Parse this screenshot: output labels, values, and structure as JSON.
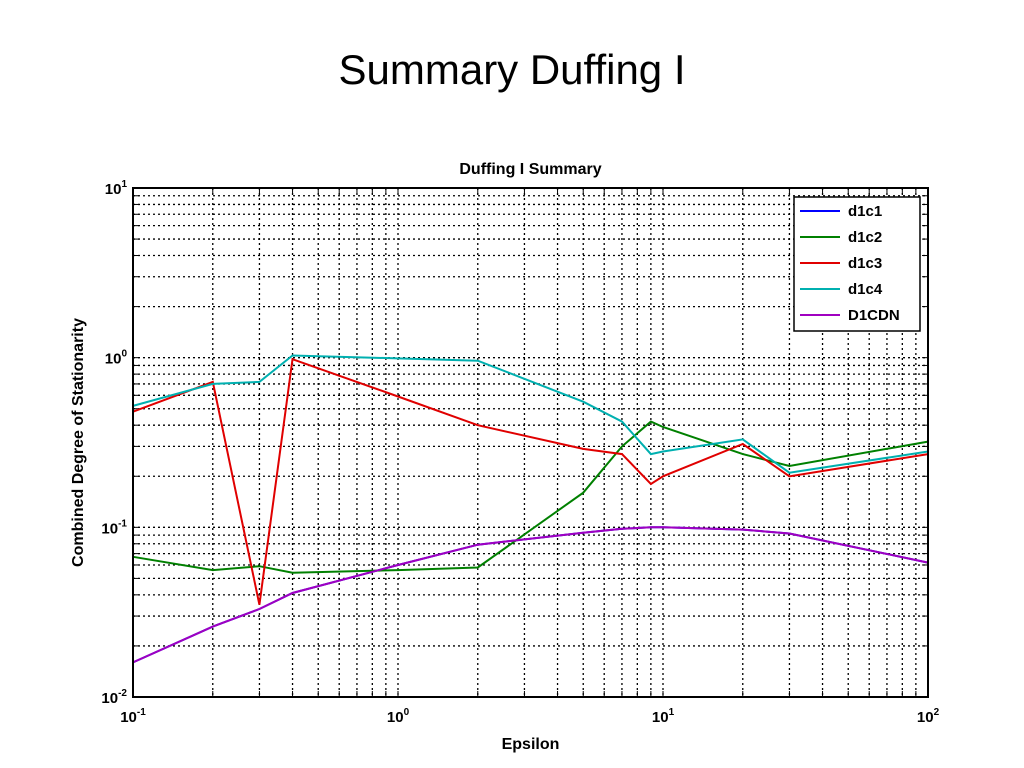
{
  "slide": {
    "title": "Summary Duffing I"
  },
  "chart_data": {
    "type": "line",
    "title": "Duffing I Summary",
    "xlabel": "Epsilon",
    "ylabel": "Combined Degree of Stationarity",
    "xscale": "log",
    "yscale": "log",
    "xlim": [
      0.1,
      100
    ],
    "ylim": [
      0.01,
      10
    ],
    "grid": true,
    "legend_position": "top-right",
    "x_ticks": [
      {
        "base": "10",
        "exp": "-1"
      },
      {
        "base": "10",
        "exp": "0"
      },
      {
        "base": "10",
        "exp": "1"
      },
      {
        "base": "10",
        "exp": "2"
      }
    ],
    "y_ticks": [
      {
        "base": "10",
        "exp": "-2"
      },
      {
        "base": "10",
        "exp": "-1"
      },
      {
        "base": "10",
        "exp": "0"
      },
      {
        "base": "10",
        "exp": "1"
      }
    ],
    "x": [
      0.1,
      0.2,
      0.3,
      0.4,
      1,
      2,
      5,
      7,
      9,
      10,
      20,
      30,
      100
    ],
    "series": [
      {
        "name": "d1c1",
        "color": "#0000ff",
        "values": [
          0.016,
          0.026,
          0.033,
          0.041,
          0.06,
          0.079,
          0.093,
          0.098,
          0.1,
          0.1,
          0.097,
          0.092,
          0.062
        ]
      },
      {
        "name": "d1c2",
        "color": "#008000",
        "values": [
          0.067,
          0.056,
          0.059,
          0.054,
          0.056,
          0.058,
          0.16,
          0.3,
          0.42,
          0.39,
          0.27,
          0.23,
          0.32
        ]
      },
      {
        "name": "d1c3",
        "color": "#e00000",
        "values": [
          0.48,
          0.72,
          0.035,
          0.98,
          0.59,
          0.4,
          0.29,
          0.27,
          0.18,
          0.2,
          0.31,
          0.2,
          0.27
        ]
      },
      {
        "name": "d1c4",
        "color": "#00b0b0",
        "values": [
          0.52,
          0.7,
          0.72,
          1.03,
          0.99,
          0.96,
          0.55,
          0.42,
          0.27,
          0.28,
          0.33,
          0.21,
          0.28
        ]
      },
      {
        "name": "D1CDN",
        "color": "#a000c0",
        "values": [
          0.016,
          0.026,
          0.033,
          0.041,
          0.06,
          0.079,
          0.093,
          0.098,
          0.1,
          0.1,
          0.097,
          0.092,
          0.062
        ]
      }
    ]
  }
}
